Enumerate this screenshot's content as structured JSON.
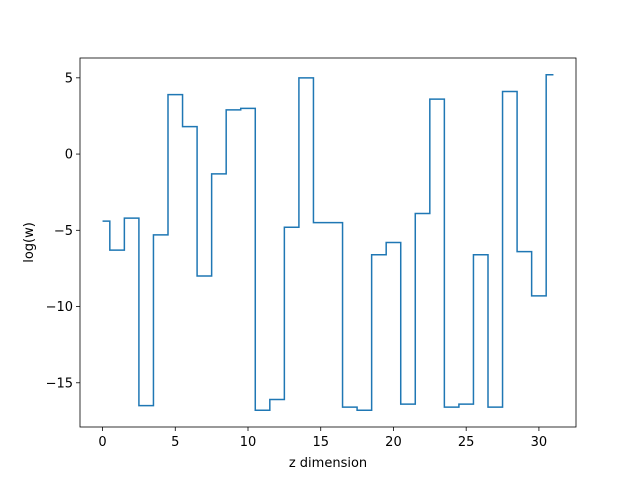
{
  "chart_data": {
    "type": "line",
    "drawstyle": "steps-mid",
    "title": "",
    "xlabel": "z dimension",
    "ylabel": "log(w)",
    "xlim": [
      -1.55,
      32.55
    ],
    "ylim": [
      -17.9,
      6.3
    ],
    "xticks": [
      0,
      5,
      10,
      15,
      20,
      25,
      30
    ],
    "yticks": [
      5,
      0,
      -5,
      -10,
      -15
    ],
    "ytick_labels": [
      "5",
      "0",
      "−5",
      "−10",
      "−15"
    ],
    "grid": false,
    "line_color": "#1f77b4",
    "series": [
      {
        "x": [
          0,
          1,
          2,
          3,
          4,
          5,
          6,
          7,
          8,
          9,
          10,
          11,
          12,
          13,
          14,
          15,
          16,
          17,
          18,
          19,
          20,
          21,
          22,
          23,
          24,
          25,
          26,
          27,
          28,
          29,
          30,
          31
        ],
        "values": [
          -4.4,
          -6.3,
          -4.2,
          -16.5,
          -5.3,
          3.9,
          1.8,
          -8.0,
          -1.3,
          2.9,
          3.0,
          -16.8,
          -16.1,
          -4.8,
          5.0,
          -4.5,
          -4.5,
          -16.6,
          -16.8,
          -6.6,
          -5.8,
          -16.4,
          -3.9,
          3.6,
          -16.6,
          -16.4,
          -6.6,
          -16.6,
          4.1,
          -6.4,
          -9.3,
          5.2
        ]
      }
    ]
  }
}
